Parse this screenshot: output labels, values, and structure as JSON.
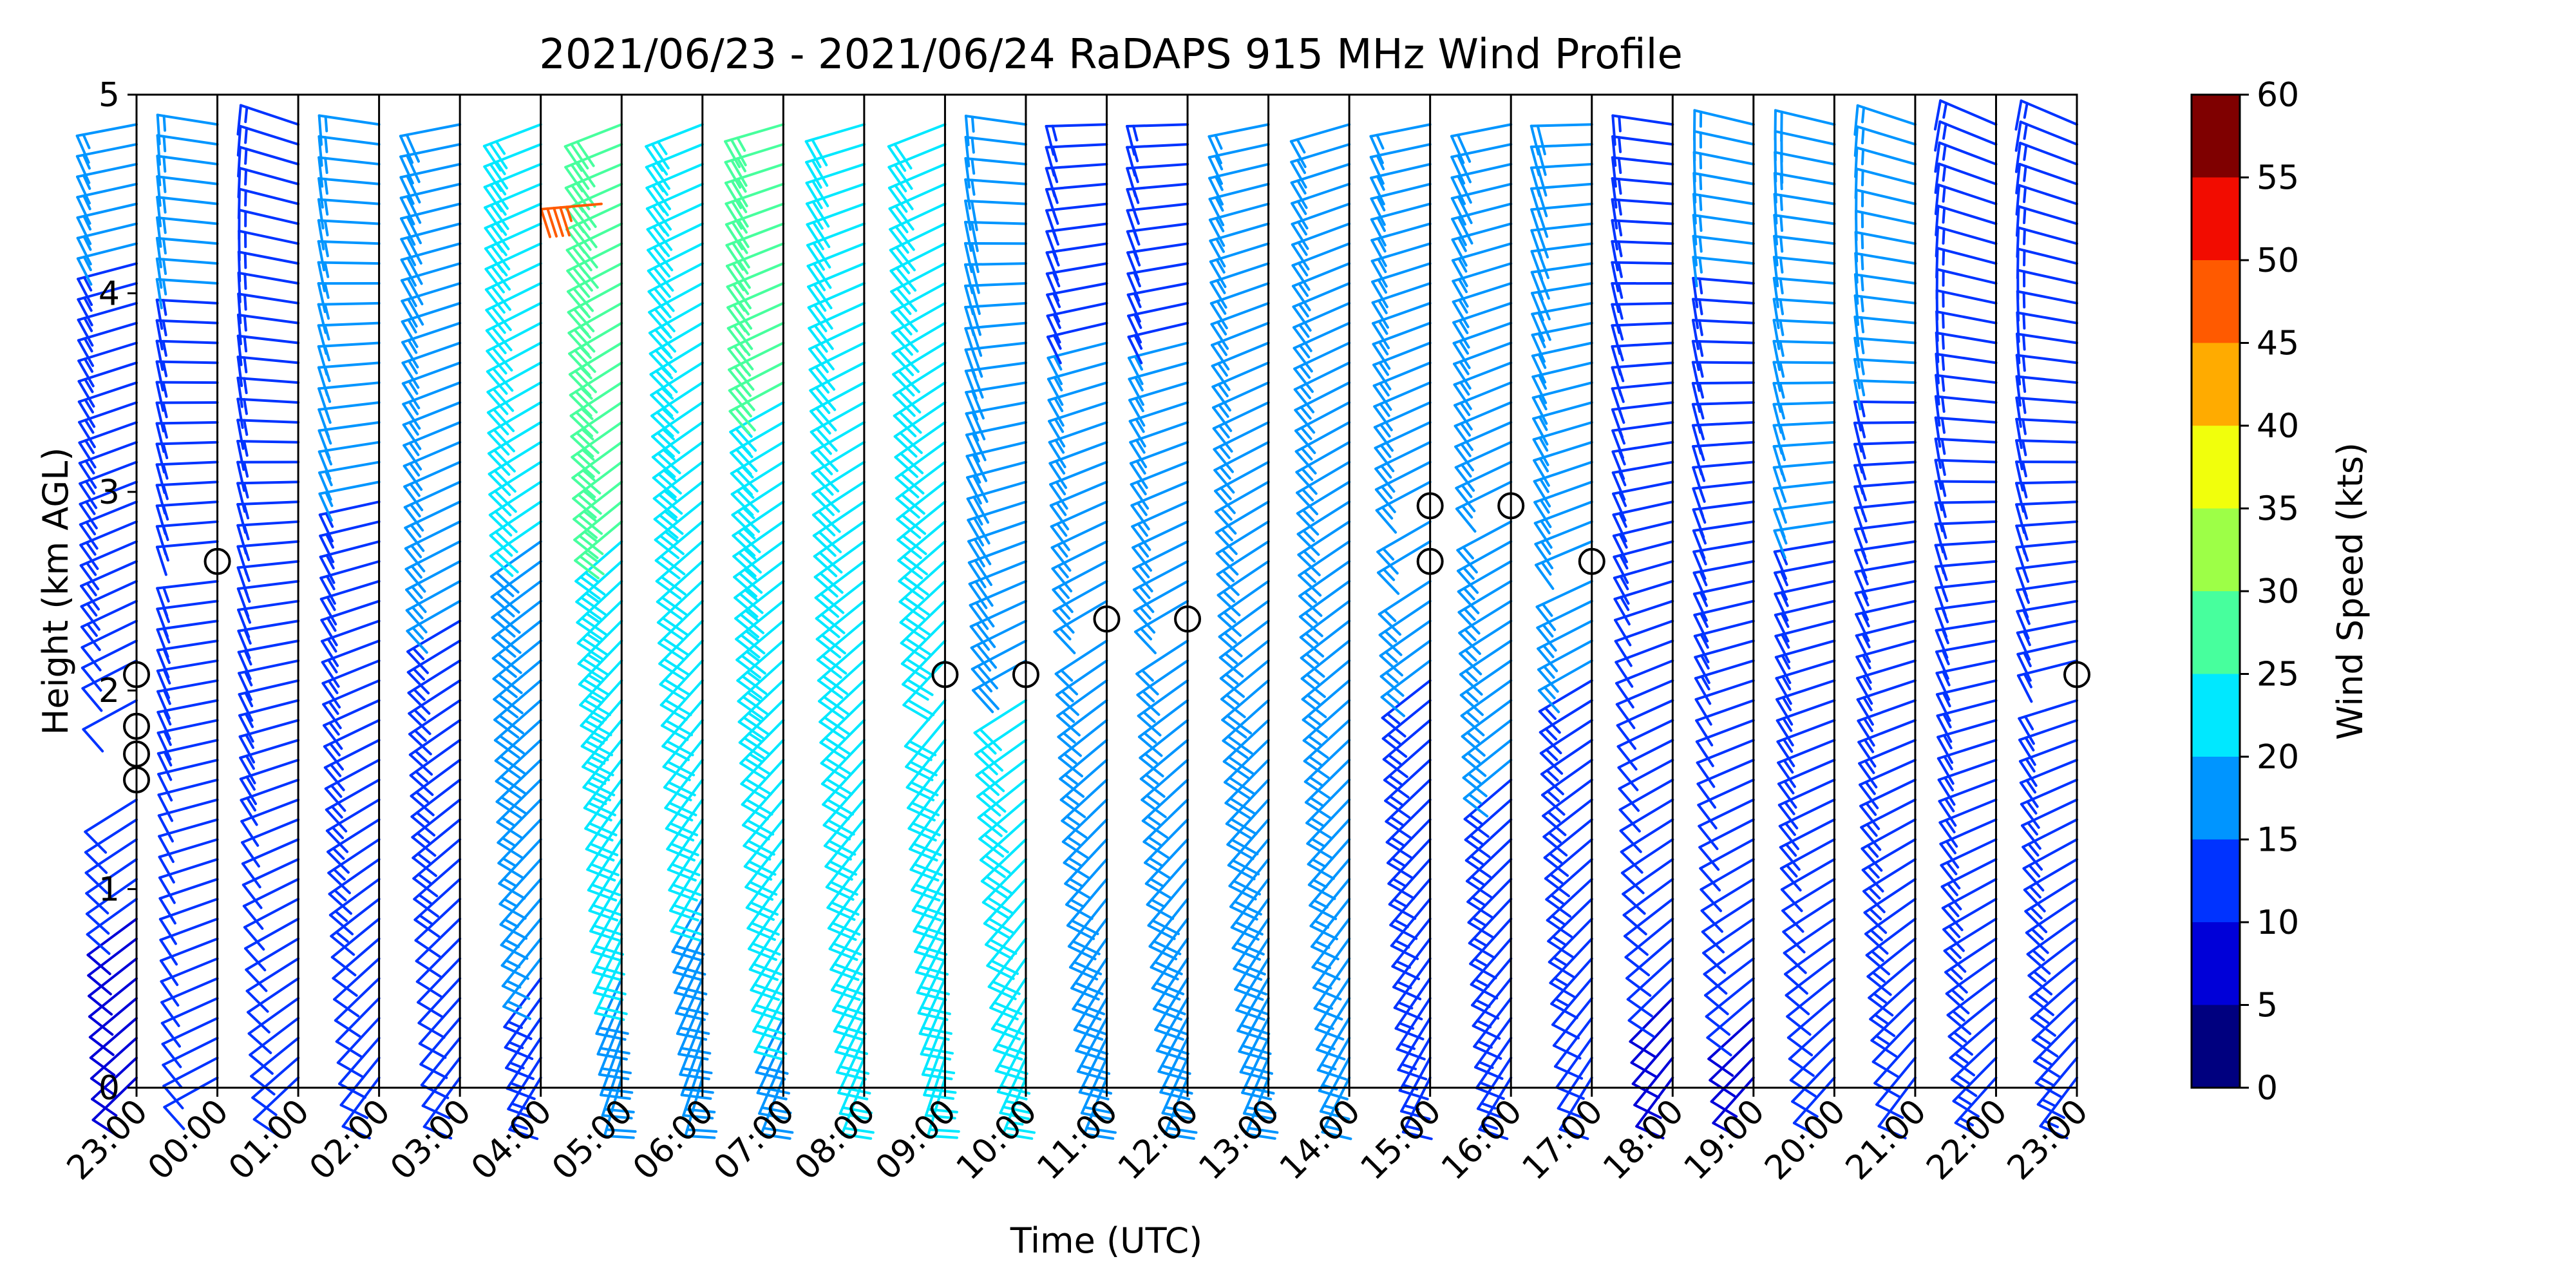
{
  "chart_data": {
    "type": "wind_barb_profile",
    "title": "2021/06/23 - 2021/06/24 RaDAPS 915 MHz Wind Profile",
    "xlabel": "Time (UTC)",
    "ylabel": "Height (km AGL)",
    "x_ticks": [
      "23:00",
      "00:00",
      "01:00",
      "02:00",
      "03:00",
      "04:00",
      "05:00",
      "06:00",
      "07:00",
      "08:00",
      "09:00",
      "10:00",
      "11:00",
      "12:00",
      "13:00",
      "14:00",
      "15:00",
      "16:00",
      "17:00",
      "18:00",
      "19:00",
      "20:00",
      "21:00",
      "22:00",
      "23:00"
    ],
    "y_ticks": [
      "0",
      "1",
      "2",
      "3",
      "4",
      "5"
    ],
    "ylim": [
      0,
      5
    ],
    "colorbar": {
      "label": "Wind Speed (kts)",
      "ticks": [
        "0",
        "5",
        "10",
        "15",
        "20",
        "25",
        "30",
        "35",
        "40",
        "45",
        "50",
        "55",
        "60"
      ],
      "bins": [
        {
          "min": 0,
          "max": 5,
          "color": "#00007f"
        },
        {
          "min": 5,
          "max": 10,
          "color": "#0000d8"
        },
        {
          "min": 10,
          "max": 15,
          "color": "#0033ff"
        },
        {
          "min": 15,
          "max": 20,
          "color": "#0095ff"
        },
        {
          "min": 20,
          "max": 25,
          "color": "#00e8ff"
        },
        {
          "min": 25,
          "max": 30,
          "color": "#47ff9d"
        },
        {
          "min": 30,
          "max": 35,
          "color": "#9dff47"
        },
        {
          "min": 35,
          "max": 40,
          "color": "#f1ff0c"
        },
        {
          "min": 40,
          "max": 45,
          "color": "#ffab00"
        },
        {
          "min": 45,
          "max": 50,
          "color": "#ff5a00"
        },
        {
          "min": 50,
          "max": 55,
          "color": "#f20c00"
        },
        {
          "min": 55,
          "max": 60,
          "color": "#7f0000"
        }
      ]
    },
    "profiles": [
      {
        "time": "23:00",
        "low": {
          "dir": 225,
          "spd": 8
        },
        "high": {
          "dir": 260,
          "spd": 16
        },
        "calm": [
          2.08,
          1.82,
          1.68,
          1.55
        ]
      },
      {
        "time": "00:00",
        "low": {
          "dir": 240,
          "spd": 10
        },
        "high": {
          "dir": 280,
          "spd": 16
        },
        "calm": [
          2.65
        ]
      },
      {
        "time": "01:00",
        "low": {
          "dir": 225,
          "spd": 11
        },
        "high": {
          "dir": 290,
          "spd": 15
        },
        "calm": []
      },
      {
        "time": "02:00",
        "low": {
          "dir": 215,
          "spd": 11
        },
        "high": {
          "dir": 280,
          "spd": 17
        },
        "calm": []
      },
      {
        "time": "03:00",
        "low": {
          "dir": 215,
          "spd": 10
        },
        "high": {
          "dir": 260,
          "spd": 19
        },
        "calm": []
      },
      {
        "time": "04:00",
        "low": {
          "dir": 210,
          "spd": 13
        },
        "high": {
          "dir": 250,
          "spd": 24
        },
        "calm": []
      },
      {
        "time": "05:00",
        "low": {
          "dir": 195,
          "spd": 18
        },
        "high": {
          "dir": 250,
          "spd": 29
        },
        "calm": []
      },
      {
        "time": "06:00",
        "low": {
          "dir": 195,
          "spd": 18
        },
        "high": {
          "dir": 250,
          "spd": 25
        },
        "calm": []
      },
      {
        "time": "07:00",
        "low": {
          "dir": 200,
          "spd": 19
        },
        "high": {
          "dir": 255,
          "spd": 27
        },
        "calm": []
      },
      {
        "time": "08:00",
        "low": {
          "dir": 200,
          "spd": 20
        },
        "high": {
          "dir": 255,
          "spd": 22
        },
        "calm": []
      },
      {
        "time": "09:00",
        "low": {
          "dir": 195,
          "spd": 22
        },
        "high": {
          "dir": 250,
          "spd": 21
        },
        "calm": [
          2.08
        ]
      },
      {
        "time": "10:00",
        "low": {
          "dir": 200,
          "spd": 23
        },
        "high": {
          "dir": 280,
          "spd": 17
        },
        "calm": [
          2.08
        ]
      },
      {
        "time": "11:00",
        "low": {
          "dir": 200,
          "spd": 19
        },
        "high": {
          "dir": 270,
          "spd": 14
        },
        "calm": [
          2.36
        ]
      },
      {
        "time": "12:00",
        "low": {
          "dir": 200,
          "spd": 19
        },
        "high": {
          "dir": 270,
          "spd": 14
        },
        "calm": [
          2.36
        ]
      },
      {
        "time": "13:00",
        "low": {
          "dir": 200,
          "spd": 20
        },
        "high": {
          "dir": 260,
          "spd": 15
        },
        "calm": []
      },
      {
        "time": "14:00",
        "low": {
          "dir": 205,
          "spd": 17
        },
        "high": {
          "dir": 255,
          "spd": 17
        },
        "calm": []
      },
      {
        "time": "15:00",
        "low": {
          "dir": 205,
          "spd": 14
        },
        "high": {
          "dir": 260,
          "spd": 16
        },
        "calm": [
          2.93,
          2.65
        ]
      },
      {
        "time": "16:00",
        "low": {
          "dir": 210,
          "spd": 13
        },
        "high": {
          "dir": 260,
          "spd": 18
        },
        "calm": [
          2.93
        ]
      },
      {
        "time": "17:00",
        "low": {
          "dir": 210,
          "spd": 11
        },
        "high": {
          "dir": 270,
          "spd": 19
        },
        "calm": [
          2.65
        ]
      },
      {
        "time": "18:00",
        "low": {
          "dir": 215,
          "spd": 9
        },
        "high": {
          "dir": 280,
          "spd": 15
        },
        "calm": []
      },
      {
        "time": "19:00",
        "low": {
          "dir": 220,
          "spd": 9
        },
        "high": {
          "dir": 285,
          "spd": 16
        },
        "calm": []
      },
      {
        "time": "20:00",
        "low": {
          "dir": 220,
          "spd": 10
        },
        "high": {
          "dir": 285,
          "spd": 18
        },
        "calm": []
      },
      {
        "time": "21:00",
        "low": {
          "dir": 215,
          "spd": 12
        },
        "high": {
          "dir": 290,
          "spd": 16
        },
        "calm": []
      },
      {
        "time": "22:00",
        "low": {
          "dir": 220,
          "spd": 13
        },
        "high": {
          "dir": 295,
          "spd": 15
        },
        "calm": []
      },
      {
        "time": "23:00",
        "low": {
          "dir": 215,
          "spd": 14
        },
        "high": {
          "dir": 295,
          "spd": 14
        },
        "calm": [
          2.08
        ]
      }
    ],
    "highlights": [
      {
        "time": "04:00",
        "hour_offset": 0.75,
        "height": 4.45,
        "dir": 265,
        "spd": 47
      }
    ]
  }
}
